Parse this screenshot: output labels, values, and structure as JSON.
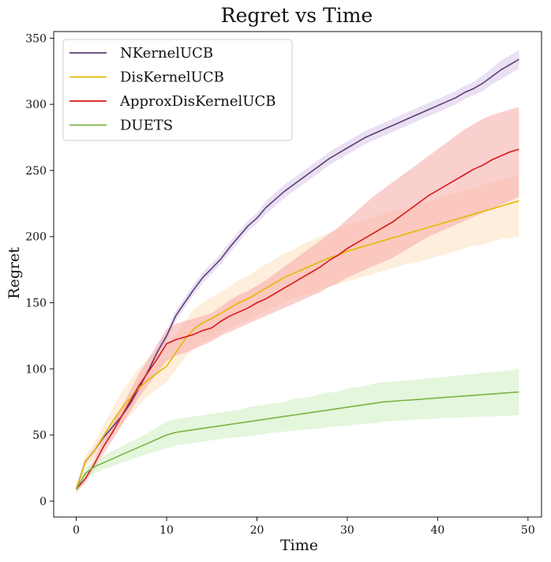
{
  "chart_data": {
    "type": "line",
    "title": "Regret vs Time",
    "xlabel": "Time",
    "ylabel": "Regret",
    "xlim": [
      -2.5,
      51.5
    ],
    "ylim": [
      -12,
      355
    ],
    "xticks": [
      0,
      10,
      20,
      30,
      40,
      50
    ],
    "yticks": [
      0,
      50,
      100,
      150,
      200,
      250,
      300,
      350
    ],
    "legend_position": "top-left",
    "grid": false,
    "series": [
      {
        "name": "NKernelUCB",
        "color": "#5b3f75",
        "band_color": "#d8c7ea",
        "x": [
          0,
          1,
          2,
          3,
          4,
          5,
          6,
          7,
          8,
          9,
          10,
          11,
          12,
          13,
          14,
          15,
          16,
          17,
          18,
          19,
          20,
          21,
          22,
          23,
          24,
          25,
          26,
          27,
          28,
          29,
          30,
          31,
          32,
          33,
          34,
          35,
          36,
          37,
          38,
          39,
          40,
          41,
          42,
          43,
          44,
          45,
          46,
          47,
          48,
          49
        ],
        "y": [
          9,
          30,
          38,
          48,
          56,
          64,
          74,
          86,
          99,
          113,
          125,
          140,
          150,
          160,
          169,
          176,
          183,
          192,
          200,
          208,
          214,
          222,
          228,
          234,
          239,
          244,
          249,
          254,
          259,
          263,
          267,
          271,
          275,
          278,
          281,
          284,
          287,
          290,
          293,
          296,
          299,
          302,
          305,
          309,
          312,
          316,
          321,
          326,
          330,
          334
        ],
        "lower": [
          7,
          27,
          35,
          45,
          53,
          60,
          70,
          82,
          95,
          109,
          121,
          136,
          146,
          156,
          165,
          172,
          179,
          188,
          196,
          204,
          210,
          217,
          223,
          229,
          234,
          239,
          244,
          249,
          254,
          258,
          262,
          266,
          270,
          273,
          276,
          279,
          282,
          285,
          288,
          291,
          294,
          297,
          300,
          304,
          307,
          310,
          315,
          319,
          323,
          327
        ],
        "upper": [
          11,
          33,
          41,
          51,
          59,
          68,
          78,
          90,
          103,
          117,
          129,
          144,
          154,
          164,
          173,
          180,
          187,
          196,
          204,
          212,
          218,
          227,
          233,
          239,
          244,
          249,
          254,
          259,
          264,
          268,
          272,
          276,
          280,
          283,
          286,
          289,
          292,
          295,
          298,
          301,
          304,
          307,
          310,
          314,
          317,
          322,
          327,
          333,
          337,
          341
        ]
      },
      {
        "name": "DisKernelUCB",
        "color": "#e6b800",
        "band_color": "#fde0bf",
        "x": [
          0,
          1,
          2,
          3,
          4,
          5,
          6,
          7,
          8,
          9,
          10,
          11,
          12,
          13,
          14,
          15,
          16,
          17,
          18,
          19,
          20,
          21,
          22,
          23,
          24,
          25,
          26,
          27,
          28,
          29,
          30,
          31,
          32,
          33,
          34,
          35,
          36,
          37,
          38,
          39,
          40,
          41,
          42,
          43,
          44,
          45,
          46,
          47,
          48,
          49
        ],
        "y": [
          9,
          30,
          38,
          49,
          60,
          70,
          78,
          86,
          92,
          97,
          102,
          112,
          122,
          130,
          135,
          138,
          142,
          146,
          150,
          153,
          157,
          161,
          165,
          169,
          172,
          175,
          178,
          181,
          184,
          186,
          189,
          191,
          193,
          195,
          197,
          199,
          201,
          203,
          205,
          207,
          209,
          211,
          213,
          215,
          217,
          219,
          221,
          223,
          225,
          227
        ],
        "lower": [
          8,
          26,
          32,
          41,
          50,
          58,
          65,
          73,
          80,
          85,
          90,
          99,
          108,
          115,
          120,
          123,
          127,
          131,
          134,
          137,
          140,
          144,
          147,
          150,
          153,
          155,
          157,
          160,
          162,
          164,
          166,
          168,
          170,
          172,
          174,
          176,
          178,
          180,
          181,
          183,
          185,
          187,
          189,
          191,
          193,
          194,
          196,
          198,
          199,
          200
        ],
        "upper": [
          10,
          34,
          44,
          57,
          70,
          82,
          92,
          101,
          108,
          114,
          118,
          126,
          136,
          145,
          150,
          154,
          158,
          162,
          167,
          170,
          175,
          179,
          183,
          187,
          190,
          194,
          197,
          200,
          203,
          206,
          209,
          211,
          213,
          215,
          217,
          219,
          221,
          223,
          225,
          227,
          229,
          231,
          233,
          235,
          237,
          239,
          241,
          243,
          245,
          247
        ]
      },
      {
        "name": "ApproxDisKernelUCB",
        "color": "#d7191c",
        "band_color": "#f5aaa5",
        "x": [
          0,
          1,
          2,
          3,
          4,
          5,
          6,
          7,
          8,
          9,
          10,
          11,
          12,
          13,
          14,
          15,
          16,
          17,
          18,
          19,
          20,
          21,
          22,
          23,
          24,
          25,
          26,
          27,
          28,
          29,
          30,
          31,
          32,
          33,
          34,
          35,
          36,
          37,
          38,
          39,
          40,
          41,
          42,
          43,
          44,
          45,
          46,
          47,
          48,
          49
        ],
        "y": [
          9,
          17,
          28,
          41,
          52,
          64,
          76,
          88,
          98,
          108,
          119,
          122,
          124,
          126,
          129,
          131,
          136,
          140,
          143,
          146,
          150,
          153,
          157,
          161,
          165,
          169,
          173,
          177,
          182,
          186,
          191,
          195,
          199,
          203,
          207,
          211,
          216,
          221,
          226,
          231,
          235,
          239,
          243,
          247,
          251,
          254,
          258,
          261,
          264,
          266
        ],
        "lower": [
          6,
          14,
          24,
          36,
          46,
          57,
          68,
          79,
          88,
          97,
          106,
          110,
          112,
          115,
          118,
          121,
          125,
          128,
          131,
          134,
          137,
          140,
          143,
          146,
          149,
          152,
          155,
          158,
          162,
          165,
          169,
          172,
          175,
          178,
          181,
          184,
          188,
          192,
          196,
          200,
          203,
          206,
          209,
          212,
          215,
          218,
          221,
          224,
          227,
          230
        ],
        "upper": [
          12,
          20,
          32,
          46,
          58,
          71,
          84,
          97,
          108,
          119,
          130,
          134,
          136,
          138,
          140,
          142,
          147,
          152,
          156,
          159,
          163,
          167,
          172,
          177,
          182,
          187,
          192,
          197,
          202,
          207,
          213,
          219,
          225,
          231,
          236,
          241,
          246,
          251,
          256,
          261,
          266,
          271,
          276,
          281,
          285,
          289,
          292,
          294,
          296,
          298
        ]
      },
      {
        "name": "DUETS",
        "color": "#7cb342",
        "band_color": "#cdeec0",
        "x": [
          0,
          1,
          2,
          3,
          4,
          5,
          6,
          7,
          8,
          9,
          10,
          11,
          12,
          13,
          14,
          15,
          16,
          17,
          18,
          19,
          20,
          21,
          22,
          23,
          24,
          25,
          26,
          27,
          28,
          29,
          30,
          31,
          32,
          33,
          34,
          35,
          36,
          37,
          38,
          39,
          40,
          41,
          42,
          43,
          44,
          45,
          46,
          47,
          48,
          49
        ],
        "y": [
          9,
          21,
          26,
          29,
          32,
          35,
          38,
          41,
          44,
          47,
          50,
          52,
          53,
          54,
          55,
          56,
          57,
          58,
          59,
          60,
          61,
          62,
          63,
          64,
          65,
          66,
          67,
          68,
          69,
          70,
          71,
          72,
          73,
          74,
          75,
          75.5,
          76,
          76.5,
          77,
          77.5,
          78,
          78.5,
          79,
          79.5,
          80,
          80.5,
          81,
          81.5,
          82,
          82.5
        ],
        "lower": [
          7,
          17,
          21,
          24,
          26,
          29,
          31,
          34,
          36,
          38,
          40,
          42,
          43,
          44,
          45,
          46,
          47,
          48,
          48.5,
          49,
          50,
          51,
          52,
          52.5,
          53,
          54,
          54.5,
          55,
          56,
          56.5,
          57,
          58,
          58.5,
          59,
          60,
          60.5,
          61,
          61.5,
          62,
          62,
          62.5,
          63,
          63,
          63.5,
          63.5,
          64,
          64,
          64.5,
          64.5,
          65
        ],
        "upper": [
          11,
          25,
          31,
          34,
          38,
          41,
          45,
          48,
          52,
          56,
          60,
          62,
          63,
          64,
          65,
          66,
          67,
          68,
          69,
          71,
          72,
          73,
          74,
          75,
          77,
          78,
          79,
          81,
          82,
          83,
          85,
          86,
          87,
          89,
          90,
          90.5,
          91,
          91.5,
          92,
          93,
          93.5,
          94,
          95,
          95.5,
          96,
          97,
          97.5,
          98,
          99,
          100
        ]
      }
    ]
  }
}
